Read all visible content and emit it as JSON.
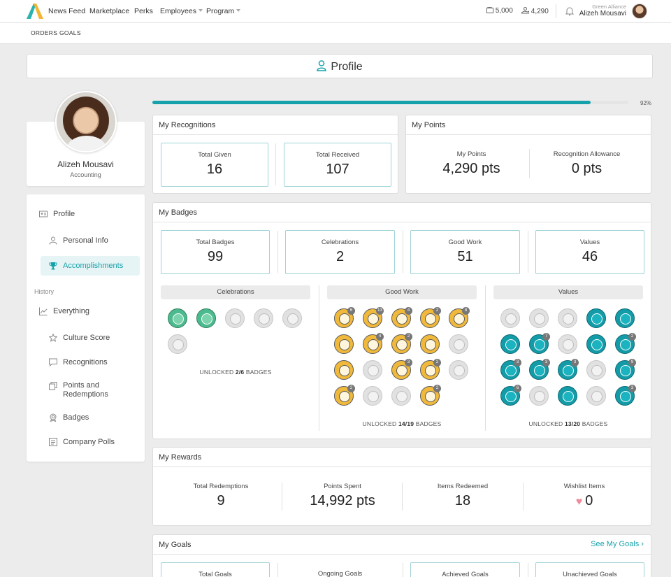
{
  "nav": {
    "items": [
      "News Feed",
      "Marketplace",
      "Perks",
      "Employees",
      "Program"
    ],
    "wallet": "5,000",
    "points": "4,290",
    "org": "Green Alliance",
    "user": "Alizeh Mousavi"
  },
  "subnav": [
    "ORDERS",
    "GOALS"
  ],
  "banner": {
    "title": "Profile"
  },
  "profile": {
    "name": "Alizeh Mousavi",
    "dept": "Accounting"
  },
  "side": {
    "profile": "Profile",
    "personal_info": "Personal Info",
    "accomplishments": "Accomplishments",
    "history": "History",
    "everything": "Everything",
    "culture_score": "Culture Score",
    "recognitions": "Recognitions",
    "points_redemptions_1": "Points and",
    "points_redemptions_2": "Redemptions",
    "badges": "Badges",
    "company_polls": "Company Polls"
  },
  "progress": {
    "value": 92,
    "label": "92%"
  },
  "recognitions": {
    "title": "My Recognitions",
    "given_label": "Total Given",
    "given": "16",
    "received_label": "Total Received",
    "received": "107"
  },
  "points": {
    "title": "My Points",
    "my_label": "My Points",
    "my": "4,290 pts",
    "allow_label": "Recognition Allowance",
    "allow": "0 pts"
  },
  "badges": {
    "title": "My Badges",
    "total_label": "Total Badges",
    "total": "99",
    "celebrations_label": "Celebrations",
    "celebrations": "2",
    "goodwork_label": "Good Work",
    "goodwork": "51",
    "values_label": "Values",
    "values": "46",
    "cat_celebrations": "Celebrations",
    "cat_goodwork": "Good Work",
    "cat_values": "Values",
    "unlock_prefix": "UNLOCKED",
    "unlock_suffix": "BADGES",
    "cel_unlock": "2/6",
    "gw_unlock": "14/19",
    "val_unlock": "13/20",
    "cel_items": [
      "green",
      "green",
      "gray",
      "gray",
      "gray",
      "gray"
    ],
    "cel_counts": [
      "",
      "",
      "",
      "",
      "",
      ""
    ],
    "gw_items": [
      "gold",
      "gold",
      "gold",
      "gold",
      "gold",
      "gold",
      "gold",
      "gold",
      "gold",
      "gray",
      "gold",
      "gray",
      "gold",
      "gold",
      "gray",
      "gold",
      "gray",
      "gray",
      "gold"
    ],
    "gw_counts": [
      "6",
      "13",
      "4",
      "2",
      "8",
      "",
      "4",
      "2",
      "",
      "",
      "",
      "",
      "3",
      "2",
      "",
      "2",
      "",
      "",
      "2"
    ],
    "val_items": [
      "gray",
      "gray",
      "gray",
      "teal",
      "teal",
      "teal",
      "teal",
      "gray",
      "teal",
      "teal",
      "teal",
      "teal",
      "teal",
      "gray",
      "teal",
      "teal",
      "gray",
      "teal",
      "gray",
      "teal"
    ],
    "val_counts": [
      "",
      "",
      "",
      "",
      "",
      "",
      "7",
      "",
      "",
      "2",
      "3",
      "3",
      "3",
      "",
      "9",
      "6",
      "",
      "",
      "",
      "3"
    ]
  },
  "rewards": {
    "title": "My Rewards",
    "redemptions_label": "Total Redemptions",
    "redemptions": "9",
    "spent_label": "Points Spent",
    "spent": "14,992 pts",
    "items_label": "Items Redeemed",
    "items": "18",
    "wishlist_label": "Wishlist Items",
    "wishlist": "0"
  },
  "goals": {
    "title": "My Goals",
    "see_link": "See My Goals",
    "total_label": "Total Goals",
    "ongoing_label": "Ongoing Goals",
    "achieved_label": "Achieved Goals",
    "unachieved_label": "Unachieved Goals"
  },
  "colors": {
    "accent": "#17a2ab",
    "gold": "#f0b93b",
    "teal": "#139ca8"
  }
}
